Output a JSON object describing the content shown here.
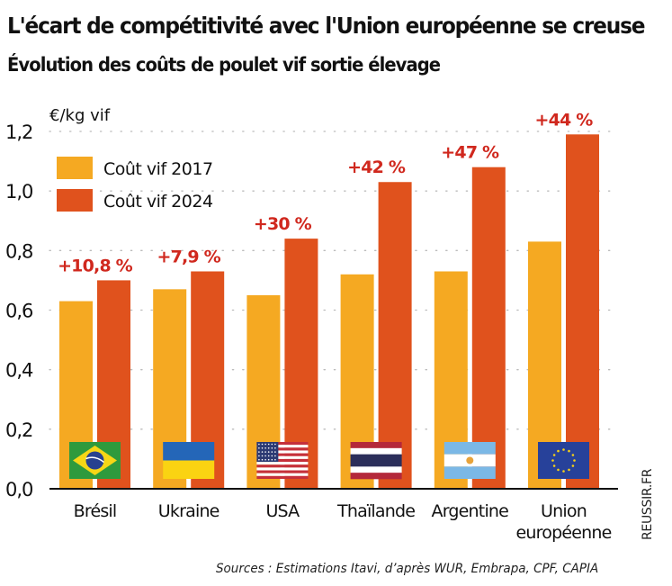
{
  "header": {
    "title": "L'écart de compétitivité avec l'Union européenne se creuse",
    "subtitle": "Évolution des coûts de poulet vif sortie élevage"
  },
  "footer": {
    "source": "Sources : Estimations Itavi, d’après WUR, Embrapa, CPF, CAPIA",
    "side_label": "REUSSIR.FR"
  },
  "colors": {
    "series_2017": "#F5A922",
    "series_2024": "#E0521D",
    "change_label": "#D0281E",
    "text": "#111111",
    "grid": "#bbbbbb"
  },
  "chart_data": {
    "type": "bar",
    "title": "L'écart de compétitivité avec l'Union européenne se creuse",
    "subtitle": "Évolution des coûts de poulet vif sortie élevage",
    "xlabel": "",
    "ylabel": "€/kg vif",
    "ylim": [
      0,
      1.2
    ],
    "yticks": [
      0.0,
      0.2,
      0.4,
      0.6,
      0.8,
      1.0,
      1.2
    ],
    "ytick_labels": [
      "0,0",
      "0,2",
      "0,4",
      "0,6",
      "0,8",
      "1,0",
      "1,2"
    ],
    "grid": "horizontal dotted",
    "legend_position": "top-left",
    "categories": [
      "Brésil",
      "Ukraine",
      "USA",
      "Thaïlande",
      "Argentine",
      "Union européenne"
    ],
    "category_lines": [
      [
        "Brésil"
      ],
      [
        "Ukraine"
      ],
      [
        "USA"
      ],
      [
        "Thaïlande"
      ],
      [
        "Argentine"
      ],
      [
        "Union",
        "européenne"
      ]
    ],
    "flags": [
      "brazil-flag",
      "ukraine-flag",
      "usa-flag",
      "thailand-flag",
      "argentina-flag",
      "eu-flag"
    ],
    "series": [
      {
        "name": "Coût vif 2017",
        "values": [
          0.63,
          0.67,
          0.65,
          0.72,
          0.73,
          0.83
        ]
      },
      {
        "name": "Coût vif 2024",
        "values": [
          0.7,
          0.73,
          0.84,
          1.03,
          1.08,
          1.19
        ]
      }
    ],
    "annotations": [
      "+10,8 %",
      "+7,9 %",
      "+30 %",
      "+42 %",
      "+47 %",
      "+44 %"
    ]
  }
}
